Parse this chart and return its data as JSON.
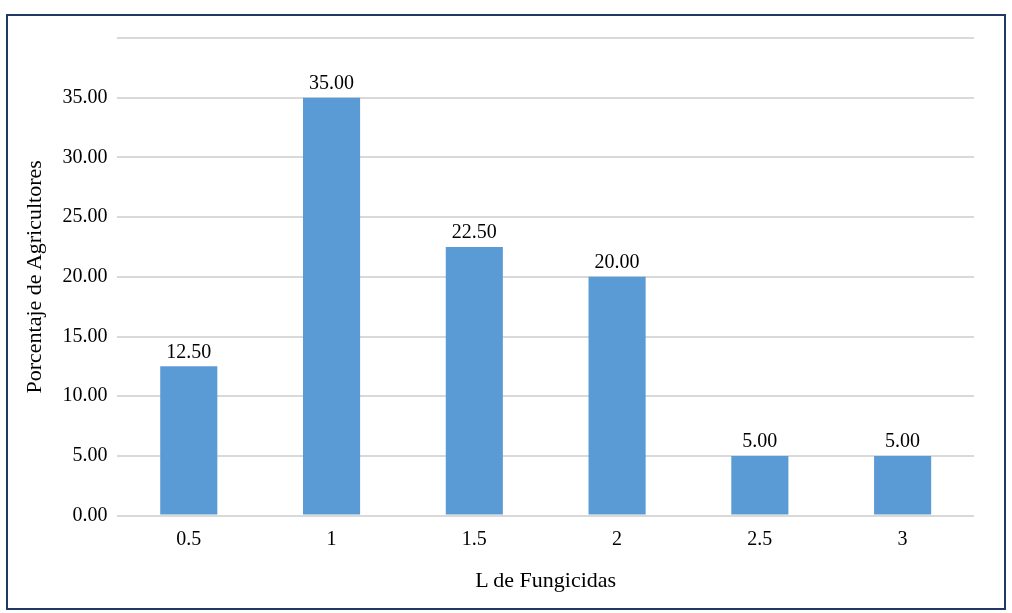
{
  "chart_data": {
    "type": "bar",
    "xlabel": "L de Fungicidas",
    "ylabel": "Porcentaje de Agricultores",
    "categories": [
      "0.5",
      "1",
      "1.5",
      "2",
      "2.5",
      "3"
    ],
    "series": [
      {
        "color": "#5b9bd5",
        "values": [
          12.5,
          35,
          22.5,
          20,
          5,
          5
        ],
        "value_labels": [
          "12.50",
          "35.00",
          "22.50",
          "20.00",
          "5.00",
          "5.00"
        ]
      }
    ],
    "ylim": [
      0,
      40
    ],
    "yticks": [
      {
        "value": 0,
        "label": "0.00"
      },
      {
        "value": 5,
        "label": "5.00"
      },
      {
        "value": 10,
        "label": "10.00"
      },
      {
        "value": 15,
        "label": "15.00"
      },
      {
        "value": 20,
        "label": "20.00"
      },
      {
        "value": 25,
        "label": "25.00"
      },
      {
        "value": 30,
        "label": "30.00"
      },
      {
        "value": 35,
        "label": "35.00"
      },
      {
        "value": 40,
        "label": null
      }
    ],
    "grid": "y",
    "legend": false
  }
}
